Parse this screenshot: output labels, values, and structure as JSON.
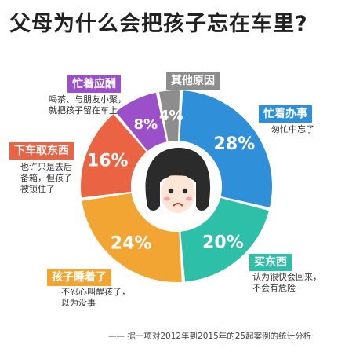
{
  "title": "父母为什么会把孩子忘在车里?",
  "chart_data": {
    "type": "pie",
    "title": "父母为什么会把孩子忘在车里?",
    "slices": [
      {
        "label": "忙着办事",
        "value": 28,
        "value_label": "28%",
        "note": "匆忙中忘了",
        "color": "#2f8fd8"
      },
      {
        "label": "买东西",
        "value": 20,
        "value_label": "20%",
        "note": "认为很快会回来，\n不会有危险",
        "color": "#2dbfa7"
      },
      {
        "label": "孩子睡着了",
        "value": 24,
        "value_label": "24%",
        "note": "不忍心叫醒孩子，\n以为没事",
        "color": "#f2a533"
      },
      {
        "label": "下车取东西",
        "value": 16,
        "value_label": "16%",
        "note": "也许只是去后\n备箱，但孩子\n被锁住了",
        "color": "#ea6343"
      },
      {
        "label": "忙着应酬",
        "value": 8,
        "value_label": "8%",
        "note": "喝茶、与朋友小聚，\n就把孩子留在车上",
        "color": "#9b4fc9"
      },
      {
        "label": "其他原因",
        "value": 4,
        "value_label": "4%",
        "note": "",
        "color": "#8d8d8d"
      }
    ]
  },
  "footnote": "—— 据一项对2012年到2015年的25起案例的统计分析"
}
